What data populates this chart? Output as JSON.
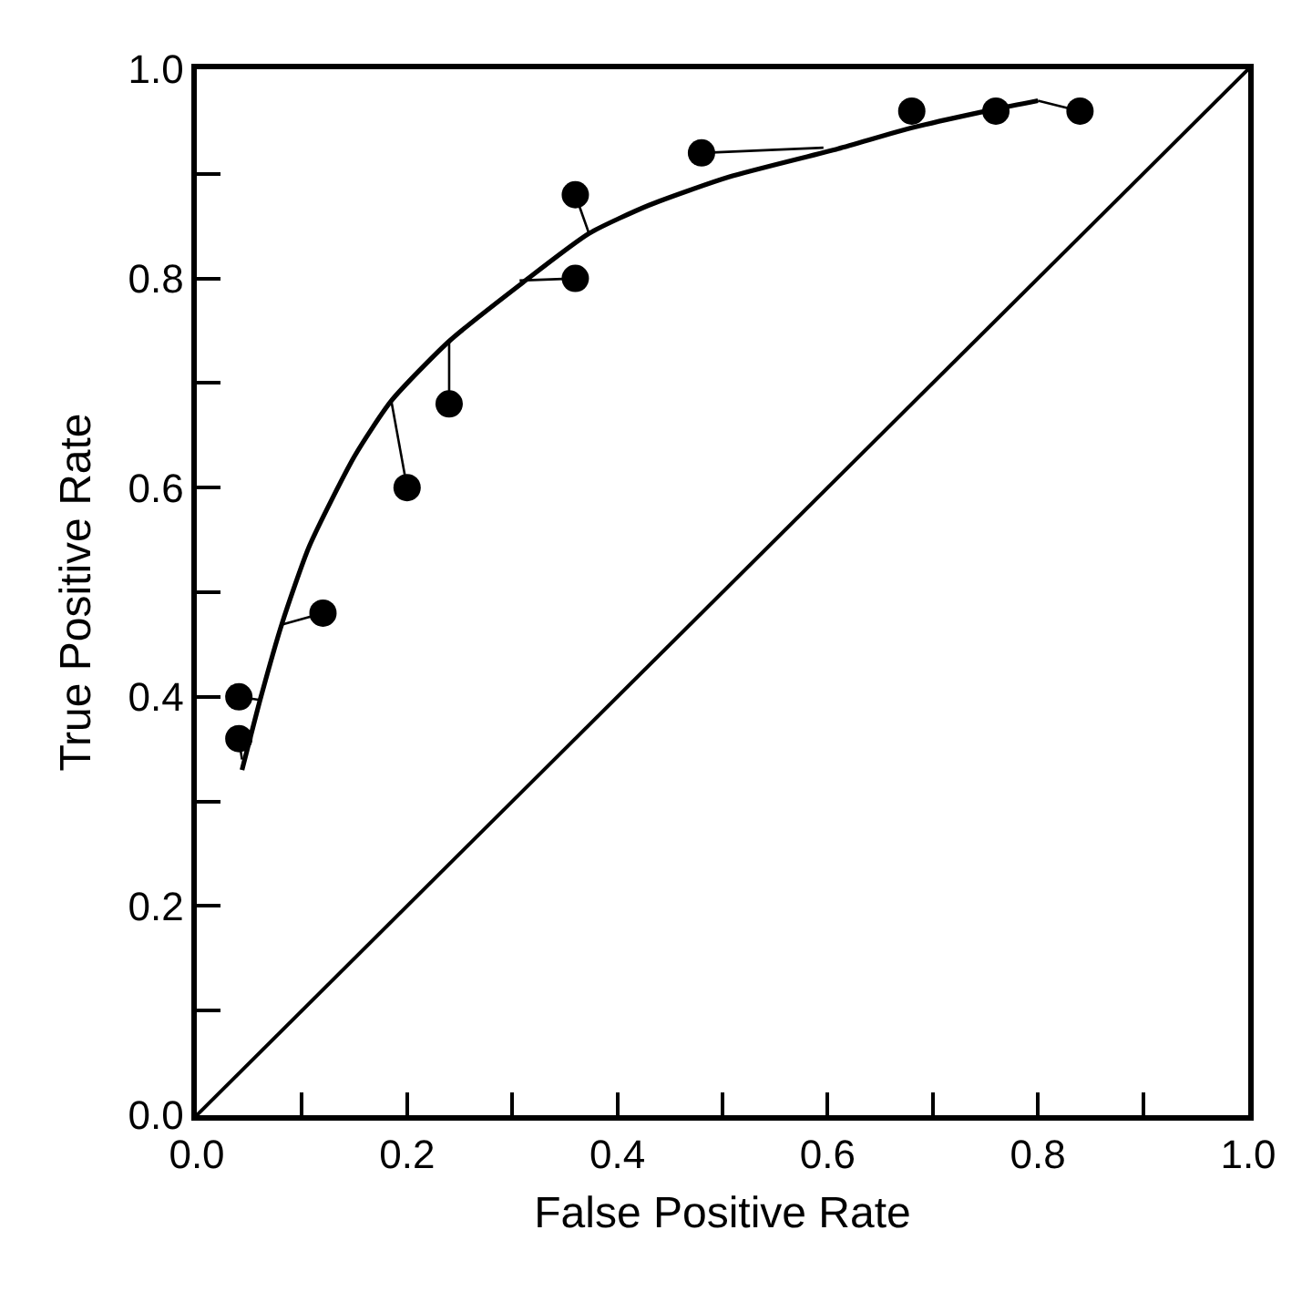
{
  "chart_data": {
    "type": "scatter",
    "xlabel": "False Positive Rate",
    "ylabel": "True Positive Rate",
    "xlim": [
      0,
      1
    ],
    "ylim": [
      0,
      1
    ],
    "xticks": [
      {
        "value": 0,
        "label": "0.0"
      },
      {
        "value": 0.1,
        "label": null
      },
      0.2,
      {
        "value": 0.3,
        "label": null
      },
      0.4,
      {
        "value": 0.5,
        "label": null
      },
      0.6,
      {
        "value": 0.7,
        "label": null
      },
      0.8,
      {
        "value": 0.9,
        "label": null
      },
      {
        "value": 1,
        "label": "1.0"
      }
    ],
    "yticks": [
      {
        "value": 0,
        "label": "0.0"
      },
      {
        "value": 0.1,
        "label": null
      },
      0.2,
      {
        "value": 0.3,
        "label": null
      },
      0.4,
      {
        "value": 0.5,
        "label": null
      },
      0.6,
      {
        "value": 0.7,
        "label": null
      },
      0.8,
      {
        "value": 0.9,
        "label": null
      },
      {
        "value": 1,
        "label": "1.0"
      }
    ],
    "series": [
      {
        "type": "line",
        "color": "#000000",
        "x": [
          0,
          1
        ],
        "values": [
          0,
          1
        ]
      },
      {
        "type": "line",
        "color": "#000000",
        "x": [
          0.043,
          0.061,
          0.081,
          0.107,
          0.15,
          0.185,
          0.24,
          0.31,
          0.373,
          0.43,
          0.506,
          0.61,
          0.68,
          0.76,
          0.8
        ],
        "values": [
          0.33,
          0.4,
          0.47,
          0.544,
          0.63,
          0.683,
          0.74,
          0.796,
          0.843,
          0.87,
          0.897,
          0.924,
          0.944,
          0.962,
          0.97
        ]
      },
      {
        "type": "line",
        "color": "#000000",
        "x": [
          0.04,
          0.06
        ],
        "values": [
          0.4,
          0.397
        ]
      },
      {
        "type": "line",
        "color": "#000000",
        "x": [
          0.04,
          0.043
        ],
        "values": [
          0.36,
          0.34
        ]
      },
      {
        "type": "line",
        "color": "#000000",
        "x": [
          0.12,
          0.081
        ],
        "values": [
          0.48,
          0.469
        ]
      },
      {
        "type": "line",
        "color": "#000000",
        "x": [
          0.2,
          0.185
        ],
        "values": [
          0.6,
          0.683
        ]
      },
      {
        "type": "line",
        "color": "#000000",
        "x": [
          0.24,
          0.24
        ],
        "values": [
          0.68,
          0.74
        ]
      },
      {
        "type": "line",
        "color": "#000000",
        "x": [
          0.36,
          0.307
        ],
        "values": [
          0.8,
          0.798
        ]
      },
      {
        "type": "line",
        "color": "#000000",
        "x": [
          0.36,
          0.373
        ],
        "values": [
          0.88,
          0.843
        ]
      },
      {
        "type": "line",
        "color": "#000000",
        "x": [
          0.48,
          0.596
        ],
        "values": [
          0.92,
          0.925
        ]
      },
      {
        "type": "line",
        "color": "#000000",
        "x": [
          0.84,
          0.8
        ],
        "values": [
          0.96,
          0.97
        ]
      },
      {
        "color": "#000000",
        "marker": "circle",
        "x": [
          0.04,
          0.04,
          0.12,
          0.2,
          0.24,
          0.36,
          0.36,
          0.48,
          0.68,
          0.76,
          0.84
        ],
        "values": [
          0.4,
          0.36,
          0.48,
          0.6,
          0.68,
          0.8,
          0.88,
          0.92,
          0.96,
          0.96,
          0.96
        ]
      }
    ]
  }
}
